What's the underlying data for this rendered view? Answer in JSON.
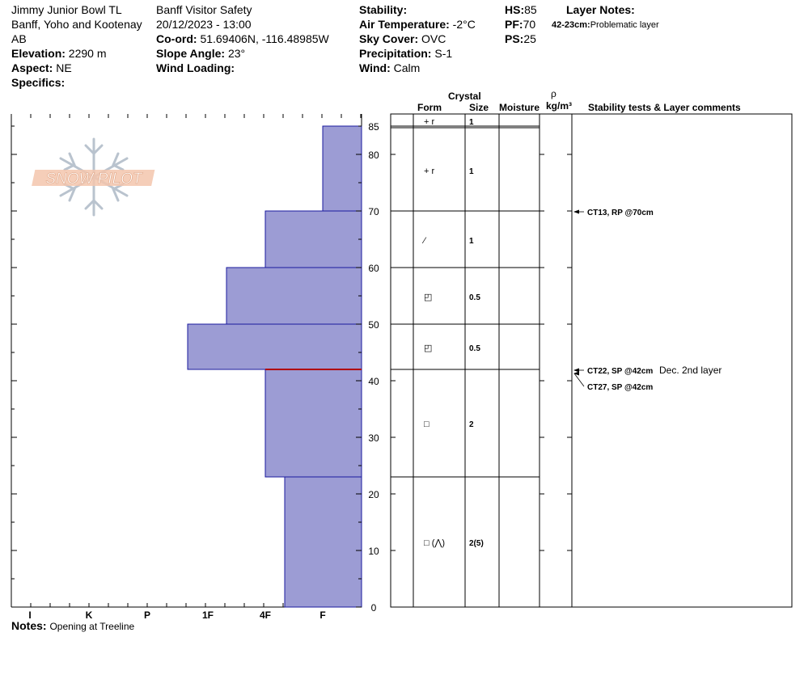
{
  "header": {
    "location": "Jimmy Junior Bowl TL",
    "region": "Banff, Yoho and Kootenay",
    "province": "AB",
    "elevation_label": "Elevation:",
    "elevation_value": "2290 m",
    "aspect_label": "Aspect:",
    "aspect_value": "NE",
    "specifics_label": "Specifics:",
    "observer": "Banff  Visitor Safety",
    "datetime": "20/12/2023 - 13:00",
    "coord_label": "Co-ord:",
    "coord_value": "51.69406N, -116.48985W",
    "slope_label": "Slope Angle:",
    "slope_value": "23°",
    "wind_loading_label": "Wind Loading:",
    "stability_label": "Stability:",
    "air_temp_label": "Air Temperature:",
    "air_temp_value": "-2°C",
    "sky_label": "Sky Cover:",
    "sky_value": "OVC",
    "precip_label": "Precipitation:",
    "precip_value": "S-1",
    "wind_label": "Wind:",
    "wind_value": "Calm",
    "hs_label": "HS:",
    "hs_value": "85",
    "pf_label": "PF:",
    "pf_value": "70",
    "ps_label": "PS:",
    "ps_value": "25",
    "layer_notes_label": "Layer Notes:",
    "layer_note_range": "42-23cm:",
    "layer_note_text": "Problematic layer"
  },
  "logo": {
    "text": "SNOW PILOT"
  },
  "columns": {
    "crystal": "Crystal",
    "form": "Form",
    "size": "Size",
    "moisture": "Moisture",
    "rho": "ρ",
    "density_unit": "kg/m³",
    "stability": "Stability tests & Layer comments"
  },
  "notes": {
    "label": "Notes:",
    "text": "Opening at Treeline"
  },
  "chart_data": {
    "type": "bar",
    "orientation": "horizontal-step",
    "ylim": [
      0,
      85
    ],
    "y_ticks": [
      0,
      10,
      20,
      30,
      40,
      50,
      60,
      70,
      80,
      85
    ],
    "hardness_scale": [
      "I",
      "K",
      "P",
      "1F",
      "4F",
      "F"
    ],
    "layers": [
      {
        "bottom": 70,
        "top": 85,
        "hardness": "F",
        "form": "+r",
        "size": "1"
      },
      {
        "bottom": 60,
        "top": 70,
        "hardness": "4F",
        "form": "/",
        "size": "1"
      },
      {
        "bottom": 50,
        "top": 60,
        "hardness": "1F+",
        "form": "rd",
        "size": "0.5"
      },
      {
        "bottom": 42,
        "top": 50,
        "hardness": "1F-",
        "form": "rd",
        "size": "0.5"
      },
      {
        "bottom": 23,
        "top": 42,
        "hardness": "4F",
        "form": "sq",
        "size": "2"
      },
      {
        "bottom": 0,
        "top": 23,
        "hardness": "4F-",
        "form": "sq-ah",
        "size": "2(5)"
      }
    ],
    "layer_form_glyphs": [
      "+ r",
      "+ r",
      "⁄",
      "◰",
      "◰",
      "□",
      "□ (⋀)"
    ],
    "weak_layer_height": 42,
    "tests": [
      {
        "text": "CT13, RP @70cm",
        "height": 70
      },
      {
        "text": "CT22, SP @42cm",
        "comment": "Dec. 2nd layer",
        "height": 42
      },
      {
        "text": "CT27, SP @42cm",
        "height": 42
      }
    ]
  },
  "colors": {
    "bar_fill": "#9c9cd4",
    "bar_stroke": "#1a1a9e",
    "weak_layer": "#b00000"
  }
}
